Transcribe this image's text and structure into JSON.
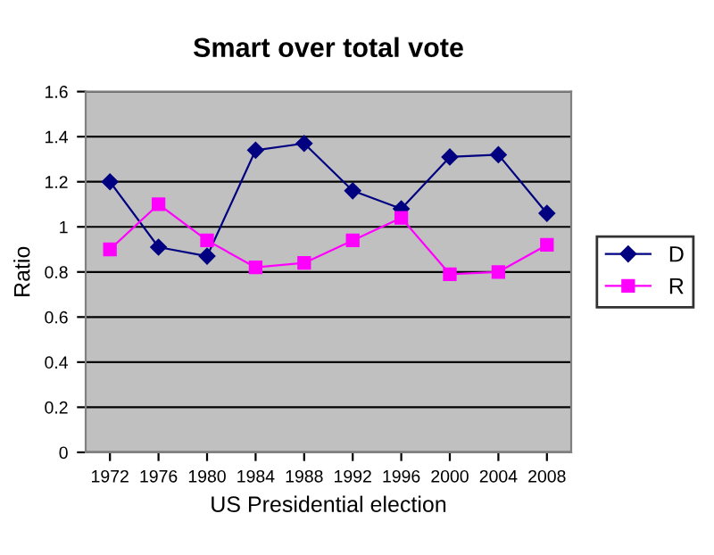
{
  "chart_data": {
    "type": "line",
    "title": "Smart over total vote",
    "xlabel": "US Presidential election",
    "ylabel": "Ratio",
    "categories": [
      "1972",
      "1976",
      "1980",
      "1984",
      "1988",
      "1992",
      "1996",
      "2000",
      "2004",
      "2008"
    ],
    "series": [
      {
        "name": "D",
        "color": "#000080",
        "marker": "diamond",
        "values": [
          1.2,
          0.91,
          0.87,
          1.34,
          1.37,
          1.16,
          1.08,
          1.31,
          1.32,
          1.06
        ]
      },
      {
        "name": "R",
        "color": "#ff00ff",
        "marker": "square",
        "values": [
          0.9,
          1.1,
          0.94,
          0.82,
          0.84,
          0.94,
          1.04,
          0.79,
          0.8,
          0.92
        ]
      }
    ],
    "ylim": [
      0,
      1.6
    ],
    "yticks": [
      0,
      0.2,
      0.4,
      0.6,
      0.8,
      1,
      1.2,
      1.4,
      1.6
    ],
    "grid": "y",
    "legend": "right",
    "line_style": "solid"
  }
}
